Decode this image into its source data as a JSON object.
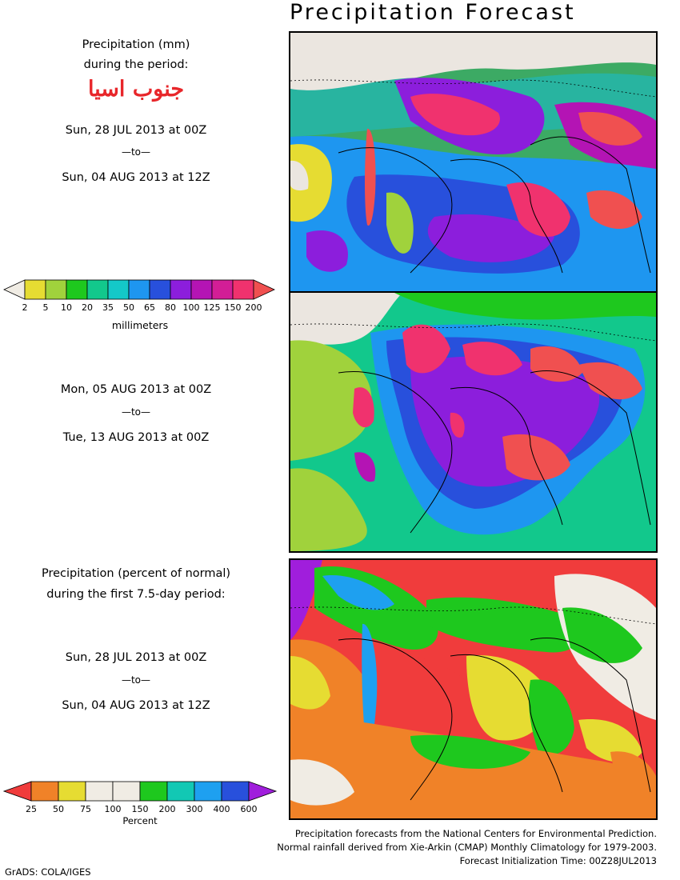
{
  "title": "Precipitation Forecast",
  "header": {
    "line1": "Precipitation (mm)",
    "line2": "during the period:",
    "region": "جنوب اسيا"
  },
  "period1": {
    "start": "Sun, 28 JUL 2013 at 00Z",
    "to": "—to—",
    "end": "Sun, 04 AUG 2013 at 12Z"
  },
  "period2": {
    "start": "Mon, 05 AUG 2013 at 00Z",
    "to": "—to—",
    "end": "Tue, 13 AUG 2013 at 00Z"
  },
  "anomaly": {
    "line1": "Precipitation (percent of normal)",
    "line2": "during the first 7.5-day period:",
    "start": "Sun, 28 JUL 2013 at 00Z",
    "to": "—to—",
    "end": "Sun, 04 AUG 2013 at 12Z"
  },
  "colorbar_mm": {
    "ticks": [
      "2",
      "5",
      "10",
      "20",
      "35",
      "50",
      "65",
      "80",
      "100",
      "125",
      "150",
      "200"
    ],
    "colors": [
      "#f0ece4",
      "#e6dc32",
      "#a0d23c",
      "#1ec81e",
      "#12c88c",
      "#14c8c8",
      "#1e96f0",
      "#2850dc",
      "#8c1edc",
      "#b414b4",
      "#d21e96",
      "#f0326e",
      "#f05050"
    ],
    "unit": "millimeters"
  },
  "colorbar_pct": {
    "ticks": [
      "25",
      "50",
      "75",
      "100",
      "150",
      "200",
      "300",
      "400",
      "600"
    ],
    "colors": [
      "#f03c3c",
      "#f08228",
      "#e6dc32",
      "#f0ece4",
      "#f0ece4",
      "#1ec81e",
      "#12c8b4",
      "#1ea0f0",
      "#2850dc",
      "#a01edc"
    ],
    "unit": "Percent"
  },
  "credits": {
    "line1": "Precipitation forecasts from the National Centers for Environmental Prediction.",
    "line2": "Normal rainfall derived from Xie-Arkin (CMAP) Monthly Climatology for 1979-2003.",
    "line3": "Forecast Initialization Time: 00Z28JUL2013"
  },
  "software": "GrADS: COLA/IGES"
}
